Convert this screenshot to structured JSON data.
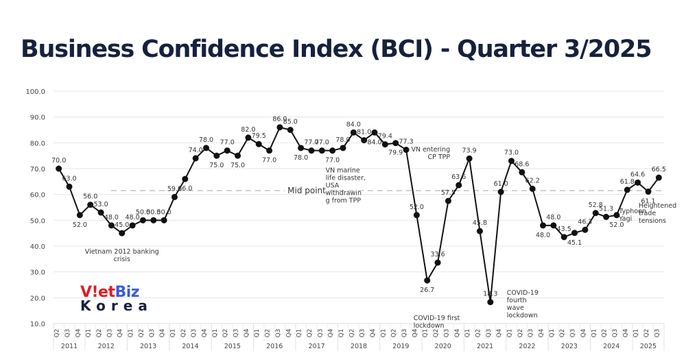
{
  "title": "Business Confidence Index (BCI) - Quarter 3/2025",
  "logo": {
    "part1_red": "V!et",
    "part2_blue": "Biz",
    "line2": "Korea",
    "colors": {
      "red": "#e01b22",
      "blue": "#3b5bdb",
      "navy": "#16213e"
    }
  },
  "chart_data": {
    "type": "line",
    "title": "Business Confidence Index (BCI) - Quarter 3/2025",
    "xlabel": "",
    "ylabel": "",
    "ylim": [
      10,
      100
    ],
    "yticks": [
      "10.0",
      "20.0",
      "30.0",
      "40.0",
      "50.0",
      "60.0",
      "70.0",
      "80.0",
      "90.0",
      "100.0"
    ],
    "grid": true,
    "years": [
      {
        "label": "2011",
        "quarters": [
          "Q2",
          "Q3",
          "Q4"
        ]
      },
      {
        "label": "2012",
        "quarters": [
          "Q1",
          "Q2",
          "Q3",
          "Q4"
        ]
      },
      {
        "label": "2013",
        "quarters": [
          "Q1",
          "Q2",
          "Q3",
          "Q4"
        ]
      },
      {
        "label": "2014",
        "quarters": [
          "Q1",
          "Q2",
          "Q3",
          "Q4"
        ]
      },
      {
        "label": "2015",
        "quarters": [
          "Q1",
          "Q2",
          "Q3",
          "Q4"
        ]
      },
      {
        "label": "2016",
        "quarters": [
          "Q1",
          "Q2",
          "Q3",
          "Q4"
        ]
      },
      {
        "label": "2017",
        "quarters": [
          "Q1",
          "Q2",
          "Q3",
          "Q4"
        ]
      },
      {
        "label": "2018",
        "quarters": [
          "Q1",
          "Q2",
          "Q3",
          "Q4"
        ]
      },
      {
        "label": "2019",
        "quarters": [
          "Q1",
          "Q2",
          "Q3",
          "Q4"
        ]
      },
      {
        "label": "2020",
        "quarters": [
          "Q1",
          "Q2",
          "Q3",
          "Q4"
        ]
      },
      {
        "label": "2021",
        "quarters": [
          "Q1",
          "Q2",
          "Q3",
          "Q4"
        ]
      },
      {
        "label": "2022",
        "quarters": [
          "Q1",
          "Q2",
          "Q3",
          "Q4"
        ]
      },
      {
        "label": "2023",
        "quarters": [
          "Q1",
          "Q2",
          "Q3",
          "Q4"
        ]
      },
      {
        "label": "2024",
        "quarters": [
          "Q1",
          "Q2",
          "Q3",
          "Q4"
        ]
      },
      {
        "label": "2025",
        "quarters": [
          "Q1",
          "Q2",
          "Q3"
        ]
      }
    ],
    "series": [
      {
        "name": "BCI",
        "color": "#111111",
        "values": [
          70.0,
          63.0,
          52.0,
          56.0,
          53.0,
          48.0,
          45.0,
          48.0,
          50.0,
          50.0,
          50.0,
          59.0,
          66.0,
          74.0,
          78.0,
          75.0,
          77.0,
          75.0,
          82.0,
          79.5,
          77.0,
          86.0,
          85.0,
          78.0,
          77.0,
          77.0,
          77.0,
          78.0,
          84.0,
          81.0,
          84.0,
          79.4,
          79.9,
          77.3,
          52.0,
          26.7,
          33.6,
          57.5,
          63.6,
          73.9,
          45.8,
          18.3,
          61.0,
          73.0,
          68.6,
          62.2,
          48.0,
          48.0,
          43.5,
          45.1,
          46.3,
          52.8,
          51.3,
          52.0,
          61.8,
          64.6,
          61.1,
          66.5
        ]
      }
    ],
    "reference_line": {
      "label": "Mid point",
      "value": 61.5
    },
    "annotations": [
      {
        "text": "Vietnam 2012 banking crisis",
        "near": "2012 Q4"
      },
      {
        "text": "VN marine life disaster, USA withdrawing from TPP",
        "near": "2017 Q4"
      },
      {
        "text": "COVID-19 first lockdown",
        "near": "2020 Q1"
      },
      {
        "text": "VN entering CP TPP",
        "near": "2021 Q1"
      },
      {
        "text": "COVID-19 fourth wave lockdown",
        "near": "2021 Q3"
      },
      {
        "text": "Typhoon Yagi",
        "near": "2024 Q3"
      },
      {
        "text": "Heightened trade tensions",
        "near": "2025 Q2"
      }
    ],
    "legend": "none"
  }
}
